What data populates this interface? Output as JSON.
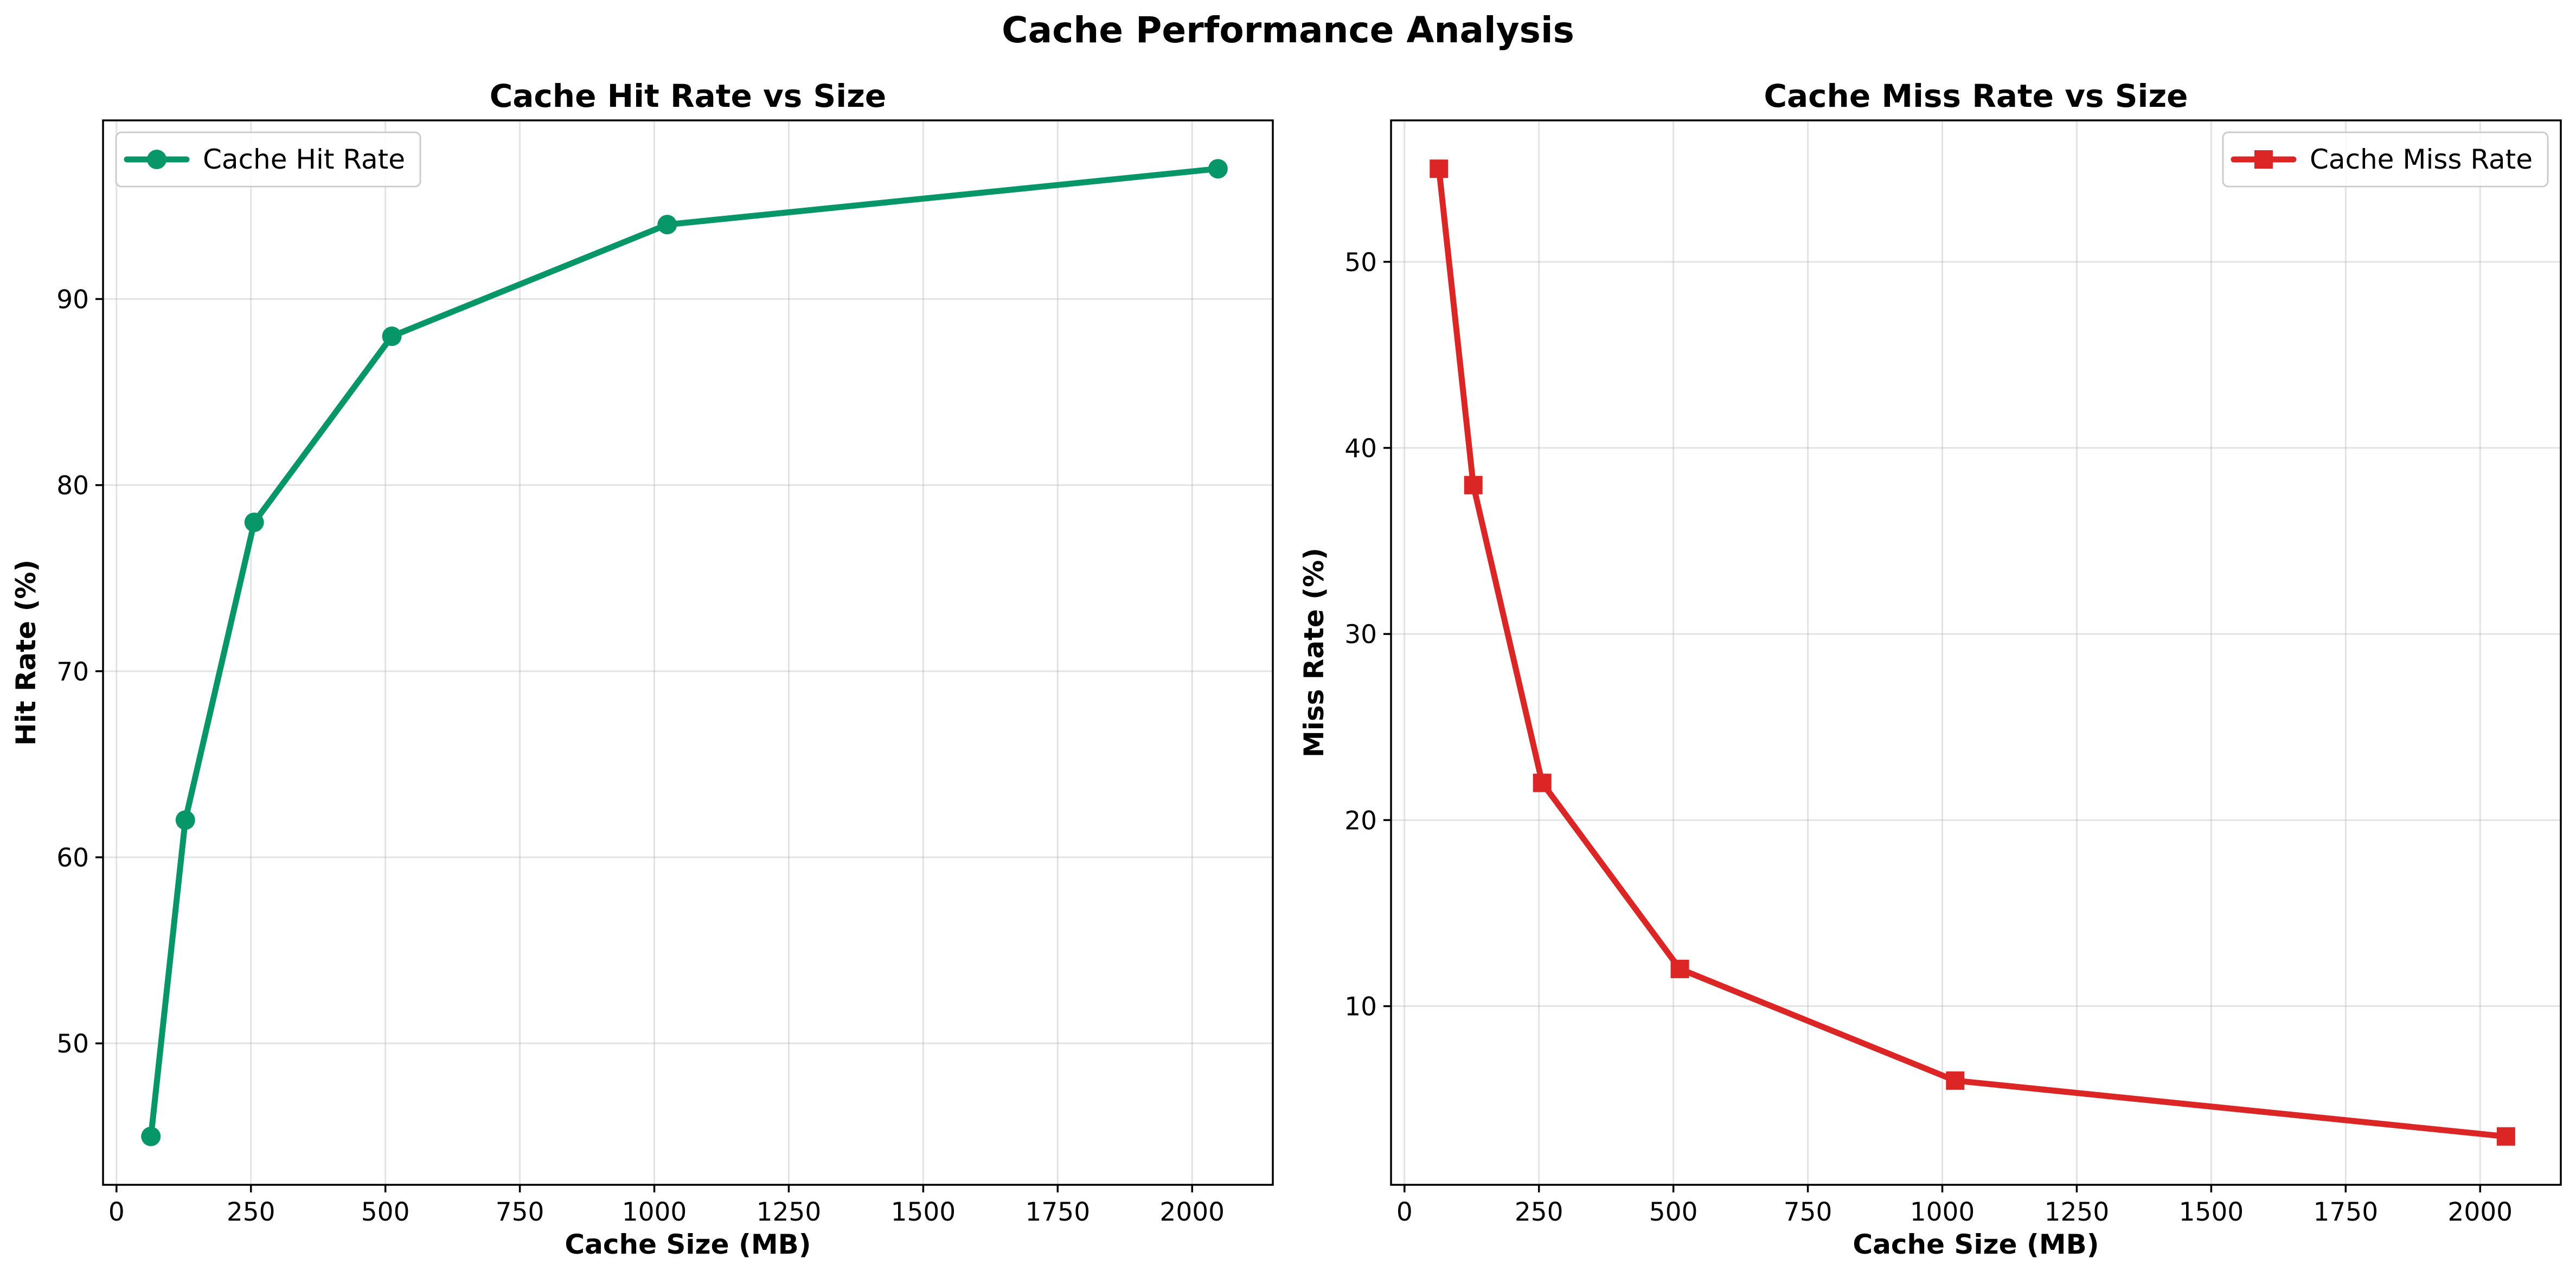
{
  "figure": {
    "title": "Cache Performance Analysis"
  },
  "chart_data": [
    {
      "type": "line",
      "title": "Cache Hit Rate vs Size",
      "xlabel": "Cache Size (MB)",
      "ylabel": "Hit Rate (%)",
      "xlim": [
        -25,
        2150
      ],
      "ylim": [
        42.4,
        99.6
      ],
      "xticks": [
        0,
        250,
        500,
        750,
        1000,
        1250,
        1500,
        1750,
        2000
      ],
      "yticks": [
        50,
        60,
        70,
        80,
        90
      ],
      "grid": true,
      "legend_position": "upper-left",
      "series": [
        {
          "name": "Cache Hit Rate",
          "color": "#069668",
          "marker": "circle",
          "x": [
            64,
            128,
            256,
            512,
            1024,
            2048
          ],
          "y": [
            45,
            62,
            78,
            88,
            94,
            97
          ]
        }
      ]
    },
    {
      "type": "line",
      "title": "Cache Miss Rate vs Size",
      "xlabel": "Cache Size (MB)",
      "ylabel": "Miss Rate (%)",
      "xlim": [
        -25,
        2150
      ],
      "ylim": [
        0.4,
        57.6
      ],
      "xticks": [
        0,
        250,
        500,
        750,
        1000,
        1250,
        1500,
        1750,
        2000
      ],
      "yticks": [
        10,
        20,
        30,
        40,
        50
      ],
      "grid": true,
      "legend_position": "upper-right",
      "series": [
        {
          "name": "Cache Miss Rate",
          "color": "#dc2626",
          "marker": "square",
          "x": [
            64,
            128,
            256,
            512,
            1024,
            2048
          ],
          "y": [
            55,
            38,
            22,
            12,
            6,
            3
          ]
        }
      ]
    }
  ]
}
